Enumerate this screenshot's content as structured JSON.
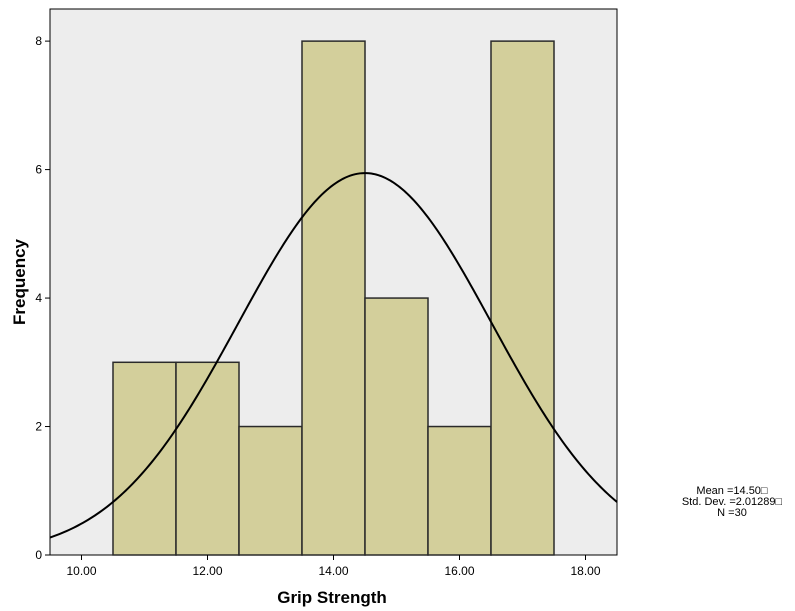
{
  "chart_data": {
    "type": "bar",
    "subtype": "histogram-with-normal-curve",
    "xlabel": "Grip Strength",
    "ylabel": "Frequency",
    "xlim": [
      9.5,
      18.5
    ],
    "ylim": [
      0,
      8.5
    ],
    "x_ticks": [
      10,
      12,
      14,
      16,
      18
    ],
    "x_tick_labels": [
      "10.00",
      "12.00",
      "14.00",
      "16.00",
      "18.00"
    ],
    "y_ticks": [
      0,
      2,
      4,
      6,
      8
    ],
    "y_tick_labels": [
      "0",
      "2",
      "4",
      "6",
      "8"
    ],
    "bins": [
      {
        "start": 10.5,
        "end": 11.5,
        "count": 3
      },
      {
        "start": 11.5,
        "end": 12.5,
        "count": 3
      },
      {
        "start": 12.5,
        "end": 13.5,
        "count": 2
      },
      {
        "start": 13.5,
        "end": 14.5,
        "count": 8
      },
      {
        "start": 14.5,
        "end": 15.5,
        "count": 4
      },
      {
        "start": 15.5,
        "end": 16.5,
        "count": 2
      },
      {
        "start": 16.5,
        "end": 17.5,
        "count": 8
      }
    ],
    "normal_curve": {
      "mean": 14.5,
      "std": 2.01289,
      "n": 30,
      "bin_width": 1
    },
    "grid": false,
    "legend": "none",
    "colors": {
      "bar_fill": "#d3cf9b",
      "bar_stroke": "#2a2a2a",
      "plot_bg": "#ededed",
      "curve": "#000000"
    }
  },
  "stats": {
    "mean": "Mean =14.50□",
    "std": "Std. Dev. =2.01289□",
    "n": "N =30"
  }
}
